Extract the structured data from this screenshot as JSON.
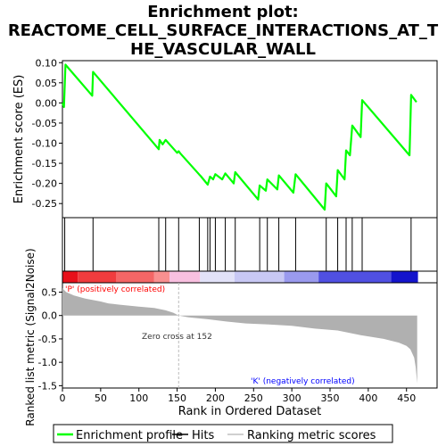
{
  "chart_data": {
    "type": "line",
    "title_lines": [
      "Enrichment plot:",
      "REACTOME_CELL_SURFACE_INTERACTIONS_AT_T",
      "HE_VASCULAR_WALL"
    ],
    "es_panel": {
      "ylabel": "Enrichment score (ES)",
      "ylim": [
        -0.285,
        0.105
      ],
      "yticks": [
        0.1,
        0.05,
        0.0,
        -0.05,
        -0.1,
        -0.15,
        -0.2,
        -0.25
      ],
      "ytick_labels": [
        "0.10",
        "0.05",
        "0.00",
        "-0.05",
        "-0.10",
        "-0.15",
        "-0.20",
        "-0.25"
      ],
      "line_color": "#00ff00",
      "profile": [
        [
          0,
          0
        ],
        [
          1,
          -0.005
        ],
        [
          2,
          -0.01
        ],
        [
          4,
          0.095
        ],
        [
          39,
          0.018
        ],
        [
          40,
          0.077
        ],
        [
          126,
          -0.115
        ],
        [
          127,
          -0.092
        ],
        [
          131,
          -0.103
        ],
        [
          135,
          -0.092
        ],
        [
          150,
          -0.124
        ],
        [
          152,
          -0.12
        ],
        [
          154,
          -0.125
        ],
        [
          179,
          -0.178
        ],
        [
          181,
          -0.182
        ],
        [
          190,
          -0.203
        ],
        [
          193,
          -0.183
        ],
        [
          197,
          -0.19
        ],
        [
          200,
          -0.177
        ],
        [
          209,
          -0.19
        ],
        [
          213,
          -0.175
        ],
        [
          224,
          -0.2
        ],
        [
          226,
          -0.172
        ],
        [
          256,
          -0.24
        ],
        [
          258,
          -0.205
        ],
        [
          266,
          -0.218
        ],
        [
          268,
          -0.19
        ],
        [
          281,
          -0.215
        ],
        [
          283,
          -0.18
        ],
        [
          302,
          -0.223
        ],
        [
          305,
          -0.177
        ],
        [
          343,
          -0.265
        ],
        [
          345,
          -0.2
        ],
        [
          358,
          -0.232
        ],
        [
          360,
          -0.167
        ],
        [
          369,
          -0.19
        ],
        [
          371,
          -0.118
        ],
        [
          376,
          -0.13
        ],
        [
          379,
          -0.056
        ],
        [
          390,
          -0.085
        ],
        [
          392,
          0.007
        ],
        [
          454,
          -0.13
        ],
        [
          456,
          0.02
        ],
        [
          463,
          0.002
        ]
      ]
    },
    "hits": [
      3,
      40,
      126,
      135,
      152,
      179,
      190,
      193,
      200,
      213,
      226,
      258,
      268,
      283,
      305,
      345,
      360,
      371,
      379,
      392,
      456
    ],
    "rank_panel": {
      "ylabel": "Ranked list metric (Signal2Noise)",
      "xlabel": "Rank in Ordered Dataset",
      "ylim": [
        -1.55,
        0.7
      ],
      "yticks": [
        0.5,
        0.0,
        -0.5,
        -1.0,
        -1.5
      ],
      "ytick_labels": [
        "0.5",
        "0.0",
        "-0.5",
        "-1.0",
        "-1.5"
      ],
      "xlim": [
        0,
        490
      ],
      "xticks": [
        0,
        50,
        100,
        150,
        200,
        250,
        300,
        350,
        400,
        450
      ],
      "xtick_labels": [
        "0",
        "50",
        "100",
        "150",
        "200",
        "250",
        "300",
        "350",
        "400",
        "450"
      ],
      "n_genes": 465,
      "metric_knots": [
        [
          0,
          0.58
        ],
        [
          5,
          0.5
        ],
        [
          15,
          0.43
        ],
        [
          30,
          0.36
        ],
        [
          50,
          0.3
        ],
        [
          60,
          0.26
        ],
        [
          75,
          0.23
        ],
        [
          100,
          0.19
        ],
        [
          120,
          0.16
        ],
        [
          135,
          0.11
        ],
        [
          145,
          0.06
        ],
        [
          152,
          0.0
        ],
        [
          165,
          -0.04
        ],
        [
          190,
          -0.08
        ],
        [
          215,
          -0.13
        ],
        [
          240,
          -0.17
        ],
        [
          270,
          -0.19
        ],
        [
          300,
          -0.22
        ],
        [
          330,
          -0.28
        ],
        [
          360,
          -0.32
        ],
        [
          390,
          -0.42
        ],
        [
          420,
          -0.5
        ],
        [
          440,
          -0.58
        ],
        [
          450,
          -0.65
        ],
        [
          455,
          -0.72
        ],
        [
          460,
          -0.9
        ],
        [
          462,
          -1.1
        ],
        [
          464,
          -1.45
        ]
      ],
      "fill_color": "#b0b0b0",
      "label_positive": "'P' (positively correlated)",
      "label_negative": "'K' (negatively correlated)",
      "zero_cross_label": "Zero cross at 152",
      "positive_color": "#ff0000",
      "negative_color": "#0000ff"
    },
    "color_bar_blocks": [
      {
        "from": 0,
        "to": 20,
        "color": "#e8101a"
      },
      {
        "from": 20,
        "to": 70,
        "color": "#f03c3e"
      },
      {
        "from": 70,
        "to": 120,
        "color": "#f46666"
      },
      {
        "from": 120,
        "to": 140,
        "color": "#f99090"
      },
      {
        "from": 140,
        "to": 180,
        "color": "#f8c0e0"
      },
      {
        "from": 180,
        "to": 225,
        "color": "#e2e2f8"
      },
      {
        "from": 225,
        "to": 290,
        "color": "#c8c8f4"
      },
      {
        "from": 290,
        "to": 335,
        "color": "#9a9aee"
      },
      {
        "from": 335,
        "to": 430,
        "color": "#5050e2"
      },
      {
        "from": 430,
        "to": 465,
        "color": "#1414cc"
      }
    ],
    "legend": [
      {
        "label": "Enrichment profile",
        "color": "#00ff00",
        "style": "line"
      },
      {
        "label": "Hits",
        "color": "#000000",
        "style": "line"
      },
      {
        "label": "Ranking metric scores",
        "color": "#c0c0c0",
        "style": "line"
      }
    ]
  }
}
